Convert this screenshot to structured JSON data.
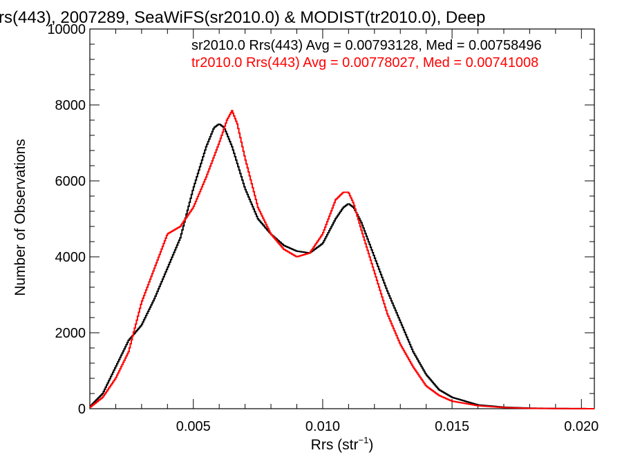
{
  "chart_data": {
    "type": "line",
    "title": "rs(443), 2007289, SeaWiFS(sr2010.0) & MODIST(tr2010.0), Deep",
    "xlabel": "Rrs (str",
    "xlabel_sup": "−1",
    "xlabel_end": ")",
    "ylabel": "Number of Observations",
    "xlim": [
      0.001,
      0.0205
    ],
    "ylim": [
      0,
      10000
    ],
    "x_ticks": [
      {
        "value": 0.005,
        "label": "0.005"
      },
      {
        "value": 0.01,
        "label": "0.010"
      },
      {
        "value": 0.015,
        "label": "0.015"
      },
      {
        "value": 0.02,
        "label": "0.020"
      }
    ],
    "y_ticks": [
      {
        "value": 0,
        "label": "0"
      },
      {
        "value": 2000,
        "label": "2000"
      },
      {
        "value": 4000,
        "label": "4000"
      },
      {
        "value": 6000,
        "label": "6000"
      },
      {
        "value": 8000,
        "label": "8000"
      },
      {
        "value": 10000,
        "label": "10000"
      }
    ],
    "legend_placement": "top-right",
    "grid": false,
    "series": [
      {
        "name": "sr2010.0 Rrs(443) Avg = 0.00793128, Med = 0.00758496",
        "color": "#000000",
        "x": [
          0.001,
          0.0015,
          0.002,
          0.0025,
          0.003,
          0.0035,
          0.004,
          0.0045,
          0.005,
          0.0055,
          0.0058,
          0.006,
          0.0062,
          0.0065,
          0.007,
          0.0075,
          0.008,
          0.0085,
          0.009,
          0.0095,
          0.01,
          0.0105,
          0.0108,
          0.011,
          0.0112,
          0.0115,
          0.012,
          0.0125,
          0.013,
          0.0135,
          0.014,
          0.0145,
          0.015,
          0.016,
          0.017,
          0.018,
          0.019,
          0.0205
        ],
        "y": [
          50,
          400,
          1100,
          1800,
          2200,
          2900,
          3700,
          4500,
          5800,
          6900,
          7400,
          7500,
          7400,
          6900,
          5800,
          5000,
          4600,
          4300,
          4150,
          4100,
          4350,
          5000,
          5300,
          5400,
          5300,
          4900,
          4000,
          3100,
          2300,
          1500,
          900,
          500,
          300,
          100,
          40,
          15,
          5,
          0
        ]
      },
      {
        "name": "tr2010.0 Rrs(443) Avg = 0.00778027, Med = 0.00741008",
        "color": "#ff0000",
        "x": [
          0.001,
          0.0015,
          0.002,
          0.0025,
          0.003,
          0.0035,
          0.004,
          0.0045,
          0.005,
          0.0055,
          0.006,
          0.0063,
          0.0065,
          0.0067,
          0.007,
          0.0075,
          0.008,
          0.0085,
          0.009,
          0.0095,
          0.01,
          0.0105,
          0.0108,
          0.011,
          0.0112,
          0.0115,
          0.012,
          0.0125,
          0.013,
          0.0135,
          0.014,
          0.0145,
          0.015,
          0.016,
          0.017,
          0.018,
          0.019,
          0.0205
        ],
        "y": [
          30,
          300,
          800,
          1500,
          2800,
          3700,
          4600,
          4800,
          5300,
          6100,
          7000,
          7600,
          7850,
          7500,
          6600,
          5300,
          4600,
          4200,
          4000,
          4100,
          4600,
          5500,
          5700,
          5700,
          5400,
          4700,
          3600,
          2500,
          1700,
          1100,
          600,
          350,
          200,
          80,
          30,
          10,
          5,
          0
        ]
      }
    ]
  }
}
